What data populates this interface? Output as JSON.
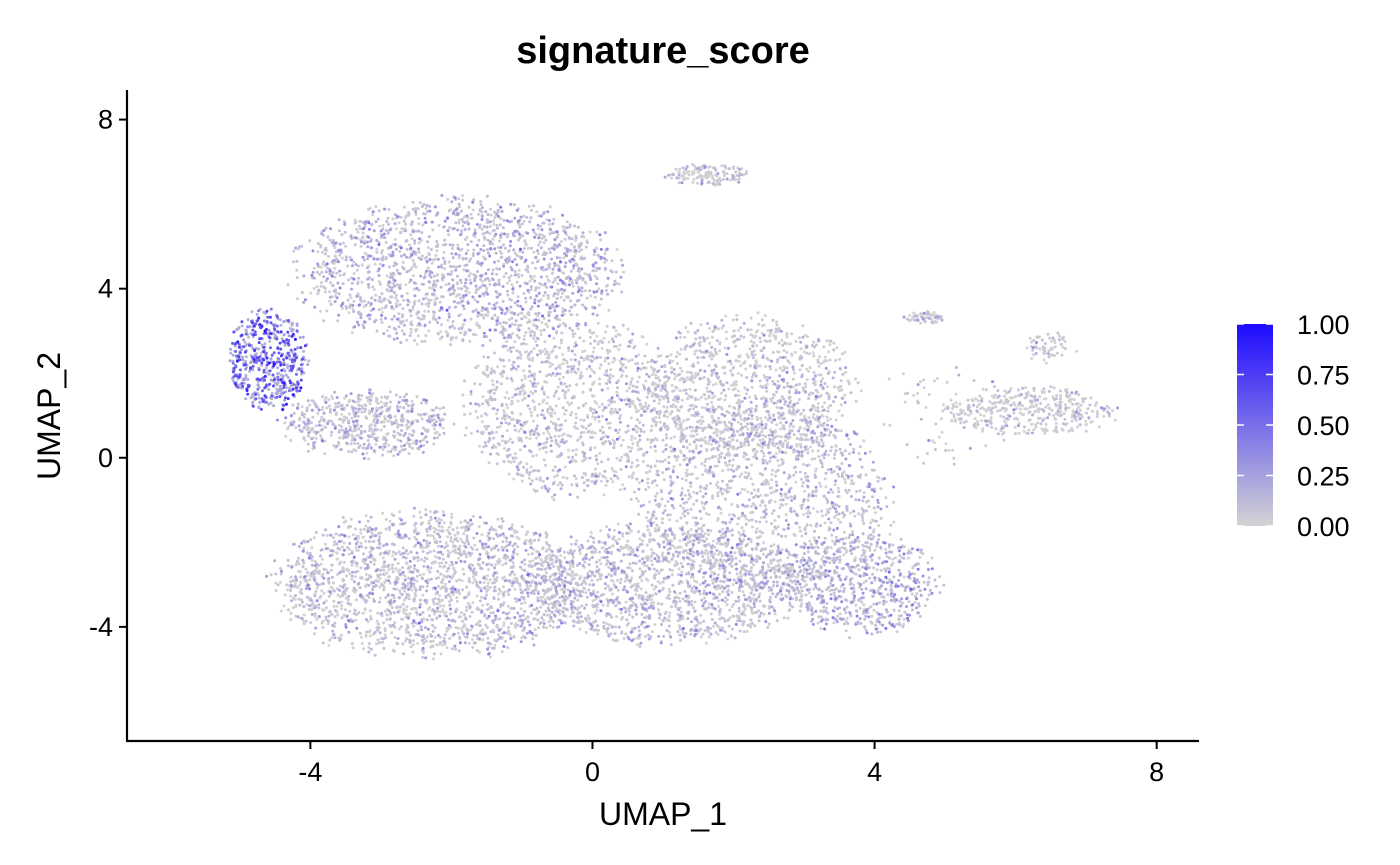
{
  "chart_data": {
    "type": "scatter",
    "title": "signature_score",
    "xlabel": "UMAP_1",
    "ylabel": "UMAP_2",
    "xlim": [
      -6.6,
      8.6
    ],
    "ylim": [
      -6.7,
      8.7
    ],
    "x_ticks": [
      -4,
      0,
      4,
      8
    ],
    "y_ticks": [
      -4,
      0,
      4,
      8
    ],
    "x_tick_labels": [
      "-4",
      "0",
      "4",
      "8"
    ],
    "y_tick_labels": [
      "-4",
      "0",
      "4",
      "8"
    ],
    "grid": false,
    "legend": {
      "placement": "right",
      "type": "colorbar",
      "ticks": [
        0,
        0.25,
        0.5,
        0.75,
        1
      ],
      "tick_labels": [
        "0.00",
        "0.25",
        "0.50",
        "0.75",
        "1.00"
      ],
      "low_color": "#d3d3d3",
      "high_color": "#1e0aff"
    },
    "point_color_low": "#d3d3d3",
    "point_color_high": "#1e0aff",
    "clusters": [
      {
        "cx": -1.9,
        "cy": 4.4,
        "rx": 2.3,
        "ry": 1.7,
        "n": 1700,
        "score": 0.18
      },
      {
        "cx": -4.6,
        "cy": 2.3,
        "rx": 0.55,
        "ry": 1.2,
        "n": 520,
        "score": 0.62
      },
      {
        "cx": -3.2,
        "cy": 0.8,
        "rx": 1.2,
        "ry": 0.8,
        "n": 550,
        "score": 0.13
      },
      {
        "cx": -0.3,
        "cy": 1.2,
        "rx": 1.5,
        "ry": 2.1,
        "n": 1100,
        "score": 0.1
      },
      {
        "cx": 2.2,
        "cy": 1.6,
        "rx": 1.5,
        "ry": 1.7,
        "n": 1000,
        "score": 0.08
      },
      {
        "cx": 2.4,
        "cy": -1.0,
        "rx": 1.8,
        "ry": 2.3,
        "n": 1300,
        "score": 0.13
      },
      {
        "cx": -2.3,
        "cy": -3.0,
        "rx": 2.2,
        "ry": 1.7,
        "n": 1900,
        "score": 0.12
      },
      {
        "cx": 1.0,
        "cy": -3.0,
        "rx": 2.0,
        "ry": 1.4,
        "n": 1400,
        "score": 0.14
      },
      {
        "cx": 3.8,
        "cy": -3.0,
        "rx": 1.1,
        "ry": 1.2,
        "n": 650,
        "score": 0.22
      },
      {
        "cx": 6.2,
        "cy": 1.1,
        "rx": 1.2,
        "ry": 0.6,
        "n": 380,
        "score": 0.05
      },
      {
        "cx": 6.5,
        "cy": 2.6,
        "rx": 0.35,
        "ry": 0.35,
        "n": 60,
        "score": 0.05
      },
      {
        "cx": 4.7,
        "cy": 3.3,
        "rx": 0.3,
        "ry": 0.15,
        "n": 60,
        "score": 0.06
      },
      {
        "cx": 1.65,
        "cy": 6.7,
        "rx": 0.6,
        "ry": 0.25,
        "n": 140,
        "score": 0.07
      },
      {
        "cx": 5.0,
        "cy": 1.0,
        "rx": 1.0,
        "ry": 1.2,
        "n": 70,
        "score": 0.04
      }
    ]
  }
}
